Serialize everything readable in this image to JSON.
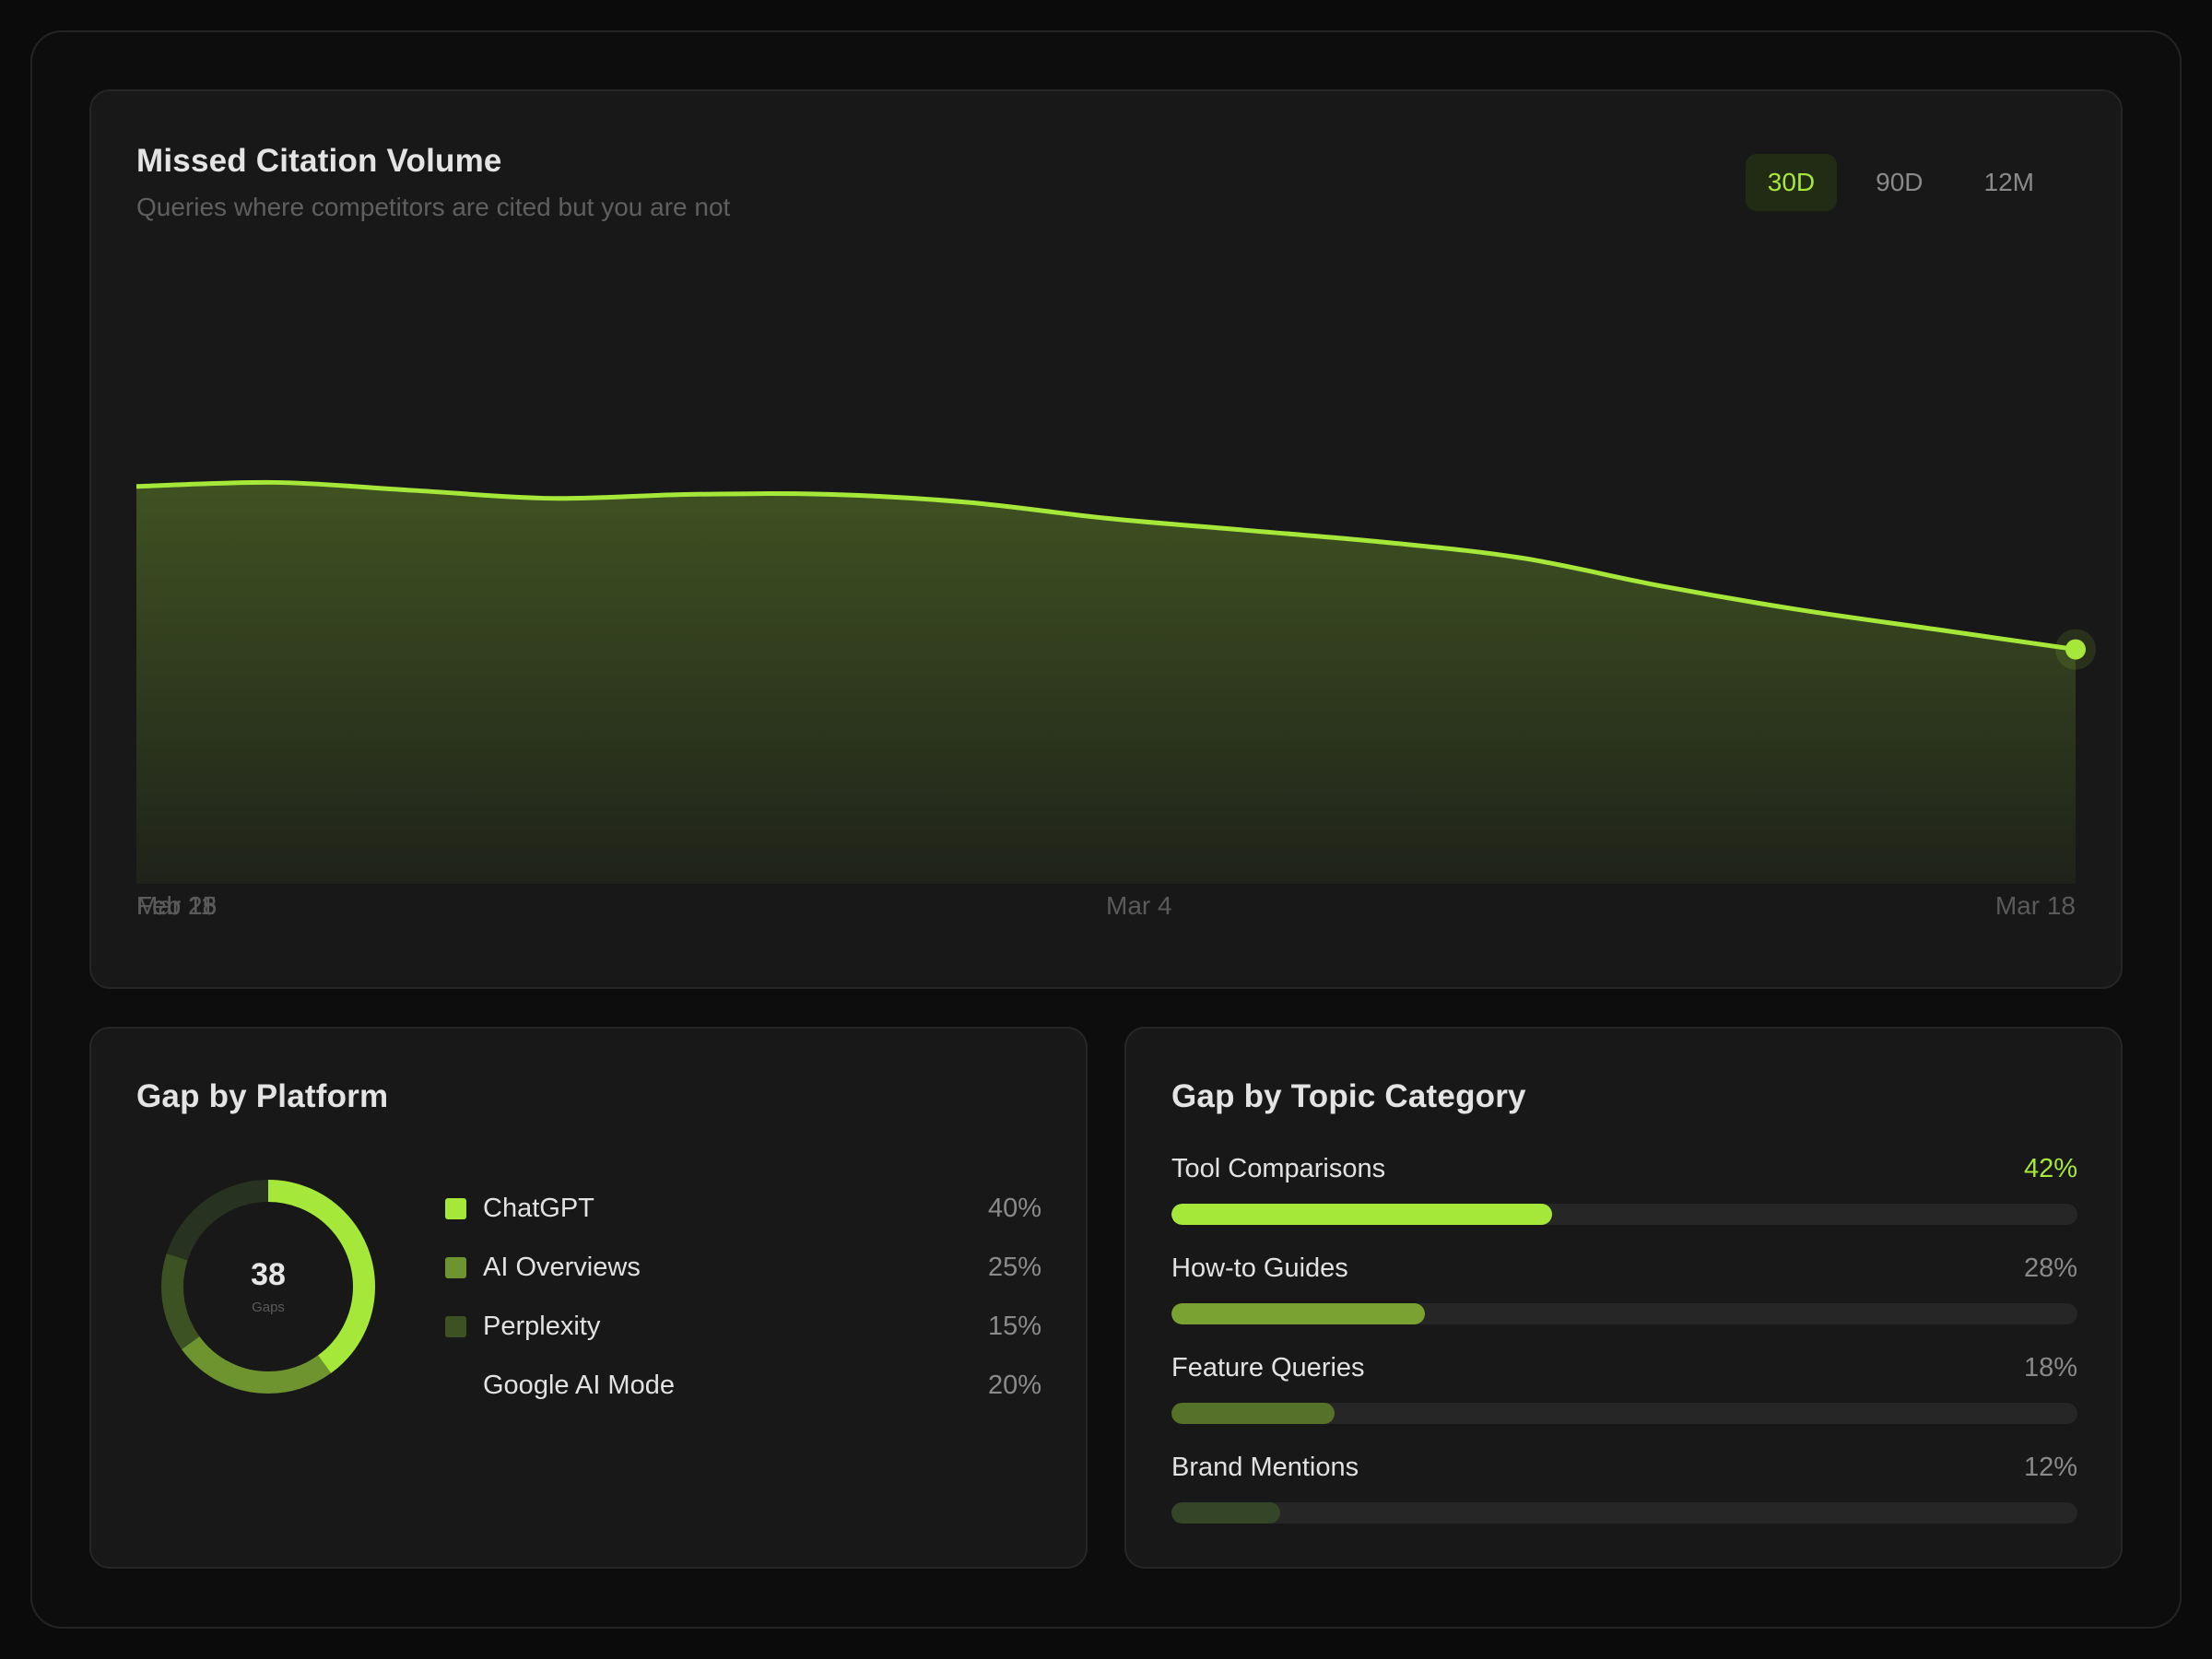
{
  "colors": {
    "accent": "#a6e83a",
    "accent_mid": "#6e9430",
    "accent_dark": "#3d5222",
    "track": "#262626"
  },
  "volume": {
    "title": "Missed Citation Volume",
    "subtitle": "Queries where competitors are cited but you are not",
    "ranges": [
      {
        "label": "30D",
        "active": true
      },
      {
        "label": "90D",
        "active": false
      },
      {
        "label": "12M",
        "active": false
      }
    ]
  },
  "chart_data": {
    "type": "area",
    "title": "Missed Citation Volume",
    "x_ticks": [
      "Feb 18",
      "Feb 25",
      "Mar 4",
      "Mar 11",
      "Mar 18"
    ],
    "x": [
      "Feb 18",
      "Feb 20",
      "Feb 22",
      "Feb 24",
      "Feb 26",
      "Feb 28",
      "Mar 2",
      "Mar 4",
      "Mar 6",
      "Mar 8",
      "Mar 10",
      "Mar 12",
      "Mar 14",
      "Mar 16",
      "Mar 18"
    ],
    "values": [
      100,
      101,
      99,
      97,
      98,
      98,
      96,
      92,
      89,
      86,
      82,
      75,
      69,
      64,
      59
    ],
    "ylim": [
      0,
      160
    ],
    "grid": false,
    "legend": "none"
  },
  "platform": {
    "title": "Gap by Platform",
    "total": "38",
    "total_label": "Gaps",
    "items": [
      {
        "name": "ChatGPT",
        "pct": "40%",
        "value": 40,
        "color": "#a6e83a",
        "ring_color": "#a6e83a"
      },
      {
        "name": "AI Overviews",
        "pct": "25%",
        "value": 25,
        "color": "#6e9430",
        "ring_color": "#6e9430"
      },
      {
        "name": "Perplexity",
        "pct": "15%",
        "value": 15,
        "color": "#3d5222",
        "ring_color": "#3d5222"
      },
      {
        "name": "Google AI Mode",
        "pct": "20%",
        "value": 20,
        "color": "transparent",
        "ring_color": "#273320"
      }
    ]
  },
  "topic": {
    "title": "Gap by Topic Category",
    "items": [
      {
        "name": "Tool Comparisons",
        "pct": "42%",
        "value": 42,
        "color": "#a6e83a",
        "accent": true
      },
      {
        "name": "How-to Guides",
        "pct": "28%",
        "value": 28,
        "color": "#79a232",
        "accent": false
      },
      {
        "name": "Feature Queries",
        "pct": "18%",
        "value": 18,
        "color": "#557228",
        "accent": false
      },
      {
        "name": "Brand Mentions",
        "pct": "12%",
        "value": 12,
        "color": "#354527",
        "accent": false
      }
    ]
  }
}
